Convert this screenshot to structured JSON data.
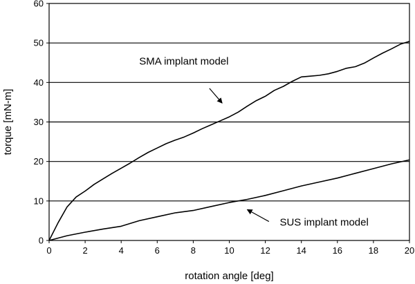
{
  "chart_data": {
    "type": "line",
    "xlabel": "rotation angle [deg]",
    "ylabel": "torque [mN-m]",
    "xlim": [
      0,
      20
    ],
    "ylim": [
      0,
      60
    ],
    "xticks": [
      0,
      2,
      4,
      6,
      8,
      10,
      12,
      14,
      16,
      18,
      20
    ],
    "yticks": [
      0,
      10,
      20,
      30,
      40,
      50,
      60
    ],
    "grid": "horizontal",
    "legend": "none",
    "series": [
      {
        "name": "SMA implant model",
        "x": [
          0,
          0.5,
          1.0,
          1.5,
          2.0,
          2.5,
          3.0,
          3.5,
          4.0,
          4.5,
          5.0,
          5.5,
          6.0,
          6.5,
          7.0,
          7.5,
          8.0,
          8.5,
          9.0,
          9.5,
          10.0,
          10.5,
          11.0,
          11.5,
          12.0,
          12.5,
          13.0,
          13.5,
          14.0,
          14.5,
          15.0,
          15.5,
          16.0,
          16.5,
          17.0,
          17.5,
          18.0,
          18.5,
          19.0,
          19.5,
          20.0
        ],
        "y": [
          0,
          4.5,
          8.5,
          11,
          12.5,
          14.2,
          15.6,
          17,
          18.3,
          19.6,
          21,
          22.3,
          23.4,
          24.5,
          25.4,
          26.2,
          27.2,
          28.3,
          29.3,
          30.3,
          31.3,
          32.5,
          34,
          35.4,
          36.5,
          38,
          39,
          40.3,
          41.4,
          41.6,
          41.8,
          42.2,
          42.8,
          43.6,
          44,
          44.9,
          46.2,
          47.4,
          48.5,
          49.7,
          50.4
        ],
        "color": "#000000"
      },
      {
        "name": "SUS implant model",
        "x": [
          0,
          1,
          2,
          3,
          4,
          5,
          6,
          7,
          8,
          9,
          10,
          11,
          12,
          13,
          14,
          15,
          16,
          17,
          18,
          19,
          20
        ],
        "y": [
          0,
          1.2,
          2.1,
          2.9,
          3.6,
          5.0,
          6.0,
          7.0,
          7.6,
          8.6,
          9.6,
          10.4,
          11.4,
          12.6,
          13.8,
          14.8,
          15.8,
          17.0,
          18.2,
          19.4,
          20.4
        ],
        "color": "#000000"
      }
    ],
    "annotations": [
      {
        "text": "SMA implant model",
        "tx": 5.0,
        "ty": 44.5,
        "ax0": 8.9,
        "ay0": 38.5,
        "ax1": 9.6,
        "ay1": 34.8
      },
      {
        "text": "SUS implant model",
        "tx": 12.8,
        "ty": 3.8,
        "ax0": 12.2,
        "ay0": 4.8,
        "ax1": 11.0,
        "ay1": 7.8
      }
    ]
  }
}
